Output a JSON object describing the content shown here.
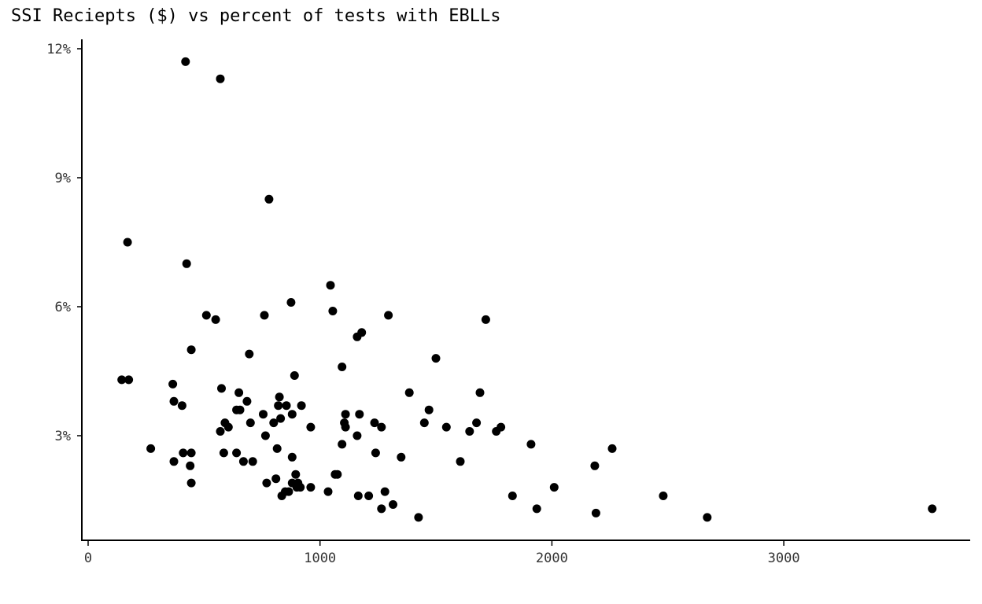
{
  "chart_data": {
    "type": "scatter",
    "title": "SSI Reciepts ($) vs percent of tests with EBLLs",
    "xlabel": "",
    "ylabel": "",
    "xlim": [
      0,
      3800
    ],
    "ylim": [
      0.5,
      12.3
    ],
    "x_ticks": [
      {
        "value": 0,
        "label": "0"
      },
      {
        "value": 1000,
        "label": "1000"
      },
      {
        "value": 2000,
        "label": "2000"
      },
      {
        "value": 3000,
        "label": "3000"
      }
    ],
    "y_ticks": [
      {
        "value": 3,
        "label": "3%"
      },
      {
        "value": 6,
        "label": "6%"
      },
      {
        "value": 9,
        "label": "9%"
      },
      {
        "value": 12,
        "label": "12%"
      }
    ],
    "grid": false,
    "point_color": "#000000",
    "points": [
      [
        420,
        11.7
      ],
      [
        570,
        11.3
      ],
      [
        780,
        8.5
      ],
      [
        170,
        7.5
      ],
      [
        425,
        7.0
      ],
      [
        510,
        5.8
      ],
      [
        550,
        5.7
      ],
      [
        760,
        5.8
      ],
      [
        875,
        6.1
      ],
      [
        1045,
        6.5
      ],
      [
        1055,
        5.9
      ],
      [
        1295,
        5.8
      ],
      [
        1715,
        5.7
      ],
      [
        1160,
        5.3
      ],
      [
        1180,
        5.4
      ],
      [
        445,
        5.0
      ],
      [
        695,
        4.9
      ],
      [
        1500,
        4.8
      ],
      [
        1095,
        4.6
      ],
      [
        890,
        4.4
      ],
      [
        145,
        4.3
      ],
      [
        175,
        4.3
      ],
      [
        365,
        4.2
      ],
      [
        575,
        4.1
      ],
      [
        650,
        4.0
      ],
      [
        1385,
        4.0
      ],
      [
        1690,
        4.0
      ],
      [
        825,
        3.9
      ],
      [
        370,
        3.8
      ],
      [
        685,
        3.8
      ],
      [
        405,
        3.7
      ],
      [
        820,
        3.7
      ],
      [
        855,
        3.7
      ],
      [
        920,
        3.7
      ],
      [
        640,
        3.6
      ],
      [
        655,
        3.6
      ],
      [
        1470,
        3.6
      ],
      [
        755,
        3.5
      ],
      [
        880,
        3.5
      ],
      [
        1110,
        3.5
      ],
      [
        1170,
        3.5
      ],
      [
        590,
        3.3
      ],
      [
        700,
        3.3
      ],
      [
        800,
        3.3
      ],
      [
        830,
        3.4
      ],
      [
        1105,
        3.3
      ],
      [
        1235,
        3.3
      ],
      [
        1450,
        3.3
      ],
      [
        1675,
        3.3
      ],
      [
        570,
        3.1
      ],
      [
        605,
        3.2
      ],
      [
        960,
        3.2
      ],
      [
        1110,
        3.2
      ],
      [
        1265,
        3.2
      ],
      [
        1545,
        3.2
      ],
      [
        1645,
        3.1
      ],
      [
        1760,
        3.1
      ],
      [
        1780,
        3.2
      ],
      [
        765,
        3.0
      ],
      [
        1160,
        3.0
      ],
      [
        270,
        2.7
      ],
      [
        1095,
        2.8
      ],
      [
        1910,
        2.8
      ],
      [
        2260,
        2.7
      ],
      [
        410,
        2.6
      ],
      [
        445,
        2.6
      ],
      [
        585,
        2.6
      ],
      [
        640,
        2.6
      ],
      [
        815,
        2.7
      ],
      [
        1240,
        2.6
      ],
      [
        370,
        2.4
      ],
      [
        670,
        2.4
      ],
      [
        710,
        2.4
      ],
      [
        880,
        2.5
      ],
      [
        1350,
        2.5
      ],
      [
        1605,
        2.4
      ],
      [
        440,
        2.3
      ],
      [
        2185,
        2.3
      ],
      [
        895,
        2.1
      ],
      [
        1065,
        2.1
      ],
      [
        1075,
        2.1
      ],
      [
        445,
        1.9
      ],
      [
        770,
        1.9
      ],
      [
        810,
        2.0
      ],
      [
        880,
        1.9
      ],
      [
        905,
        1.9
      ],
      [
        900,
        1.8
      ],
      [
        915,
        1.8
      ],
      [
        960,
        1.8
      ],
      [
        2010,
        1.8
      ],
      [
        850,
        1.7
      ],
      [
        865,
        1.7
      ],
      [
        1035,
        1.7
      ],
      [
        1280,
        1.7
      ],
      [
        835,
        1.6
      ],
      [
        1165,
        1.6
      ],
      [
        1210,
        1.6
      ],
      [
        1830,
        1.6
      ],
      [
        2480,
        1.6
      ],
      [
        1265,
        1.3
      ],
      [
        1315,
        1.4
      ],
      [
        1935,
        1.3
      ],
      [
        2190,
        1.2
      ],
      [
        1425,
        1.1
      ],
      [
        2670,
        1.1
      ],
      [
        3640,
        1.3
      ]
    ]
  }
}
